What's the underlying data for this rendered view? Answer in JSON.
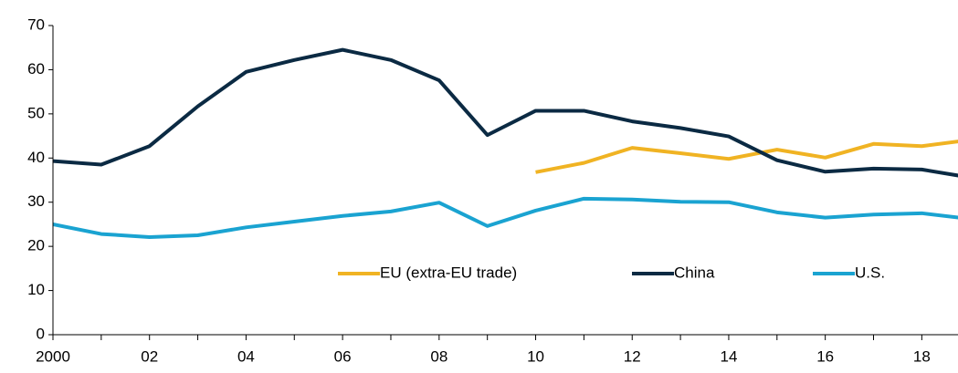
{
  "chart_data": {
    "type": "line",
    "x": [
      2000,
      2001,
      2002,
      2003,
      2004,
      2005,
      2006,
      2007,
      2008,
      2009,
      2010,
      2011,
      2012,
      2013,
      2014,
      2015,
      2016,
      2017,
      2018,
      2019
    ],
    "series": [
      {
        "name": "EU (extra-EU trade)",
        "color": "#f0b323",
        "values": [
          null,
          null,
          null,
          null,
          null,
          null,
          null,
          null,
          null,
          null,
          36.8,
          38.9,
          42.3,
          41.1,
          39.8,
          41.9,
          40.1,
          43.2,
          42.7,
          44.1
        ]
      },
      {
        "name": "China",
        "color": "#0b2a43",
        "values": [
          39.3,
          38.5,
          42.7,
          51.7,
          59.5,
          62.2,
          64.5,
          62.2,
          57.6,
          45.2,
          50.7,
          50.7,
          48.3,
          46.8,
          44.9,
          39.5,
          36.9,
          37.6,
          37.4,
          35.6
        ]
      },
      {
        "name": "U.S.",
        "color": "#1aa3d1",
        "values": [
          25.0,
          22.8,
          22.1,
          22.5,
          24.3,
          25.6,
          26.9,
          27.9,
          29.9,
          24.6,
          28.1,
          30.8,
          30.6,
          30.1,
          30.0,
          27.7,
          26.5,
          27.2,
          27.5,
          26.2
        ]
      }
    ],
    "xlim": [
      2000,
      2018.75
    ],
    "xticks": [
      {
        "value": 2000,
        "label": "2000"
      },
      {
        "value": 2002,
        "label": "02"
      },
      {
        "value": 2004,
        "label": "04"
      },
      {
        "value": 2006,
        "label": "06"
      },
      {
        "value": 2008,
        "label": "08"
      },
      {
        "value": 2010,
        "label": "10"
      },
      {
        "value": 2012,
        "label": "12"
      },
      {
        "value": 2014,
        "label": "14"
      },
      {
        "value": 2016,
        "label": "16"
      },
      {
        "value": 2018,
        "label": "18"
      }
    ],
    "ylim": [
      0,
      70
    ],
    "yticks": [
      0,
      10,
      20,
      30,
      40,
      50,
      60,
      70
    ],
    "grid": false,
    "legend": "bottom"
  }
}
